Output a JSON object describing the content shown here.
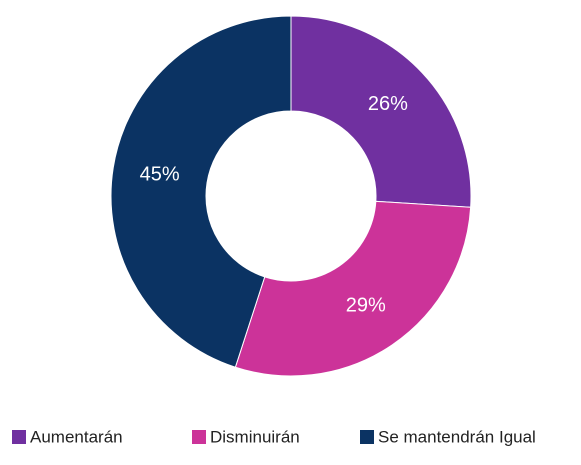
{
  "chart_data": {
    "type": "donut",
    "categories": [
      "Aumentarán",
      "Disminuirán",
      "Se mantendrán Igual"
    ],
    "values": [
      26,
      29,
      45
    ],
    "value_labels": [
      "26%",
      "29%",
      "45%"
    ],
    "colors": [
      "#7030a0",
      "#cc3399",
      "#0b3363"
    ],
    "legend": "bottom"
  }
}
